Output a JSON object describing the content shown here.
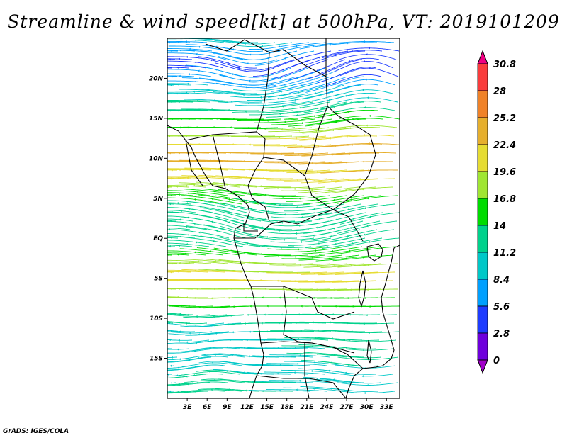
{
  "title": "Streamline & wind speed[kt] at 500hPa, VT: 2019101209",
  "credit": "GrADS: IGES/COLA",
  "map": {
    "lon_range": [
      0,
      35
    ],
    "lat_range": [
      -20,
      25
    ],
    "lon_ticks": [
      {
        "value": 3,
        "label": "3E"
      },
      {
        "value": 6,
        "label": "6E"
      },
      {
        "value": 9,
        "label": "9E"
      },
      {
        "value": 12,
        "label": "12E"
      },
      {
        "value": 15,
        "label": "15E"
      },
      {
        "value": 18,
        "label": "18E"
      },
      {
        "value": 21,
        "label": "21E"
      },
      {
        "value": 24,
        "label": "24E"
      },
      {
        "value": 27,
        "label": "27E"
      },
      {
        "value": 30,
        "label": "30E"
      },
      {
        "value": 33,
        "label": "33E"
      }
    ],
    "lat_ticks": [
      {
        "value": 20,
        "label": "20N"
      },
      {
        "value": 15,
        "label": "15N"
      },
      {
        "value": 10,
        "label": "10N"
      },
      {
        "value": 5,
        "label": "5N"
      },
      {
        "value": 0,
        "label": "EQ"
      },
      {
        "value": -5,
        "label": "5S"
      },
      {
        "value": -10,
        "label": "10S"
      },
      {
        "value": -15,
        "label": "15S"
      }
    ]
  },
  "colorbar": {
    "levels": [
      "30.8",
      "28",
      "25.2",
      "22.4",
      "19.6",
      "16.8",
      "14",
      "11.2",
      "8.4",
      "5.6",
      "2.8",
      "0"
    ],
    "colors": [
      "#f00082",
      "#fa3c3c",
      "#f08228",
      "#e6af2d",
      "#e6dc32",
      "#a0e632",
      "#00dc00",
      "#00d28c",
      "#00c8c8",
      "#00a0ff",
      "#1e3cff",
      "#6e00dc",
      "#a000c8"
    ]
  }
}
